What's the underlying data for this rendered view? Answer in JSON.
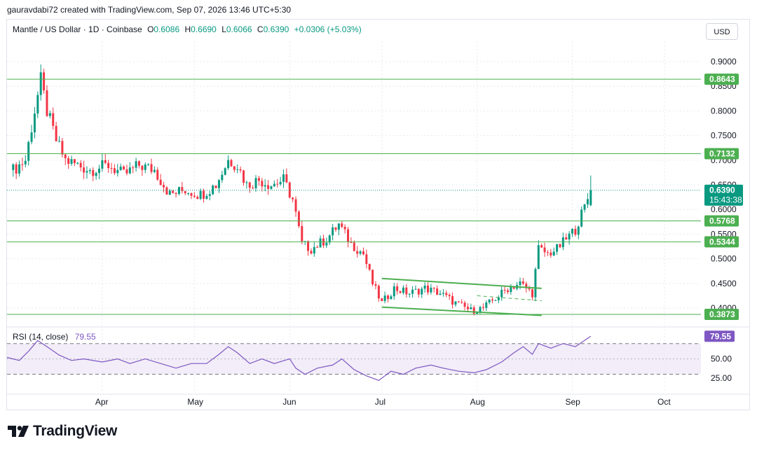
{
  "credit": "gauravdabi72 created with TradingView.com, Sep 07, 2026 13:46 UTC+5:30",
  "legend": {
    "symbol": "Mantle / US Dollar · 1D · Coinbase",
    "o_label": "O",
    "o": "0.6086",
    "h_label": "H",
    "h": "0.6690",
    "l_label": "L",
    "l": "0.6066",
    "c_label": "C",
    "c": "0.6390",
    "change": "+0.0306 (+5.03%)"
  },
  "currency": "USD",
  "logo_text": "TradingView",
  "rsi": {
    "label": "RSI (14, close)",
    "value": "79.55"
  },
  "colors": {
    "up": "#089981",
    "down": "#f23645",
    "level": "#4caf50",
    "rsi": "#7e57c2",
    "rsi_band": "#ede7f6"
  },
  "chart_data": {
    "type": "candlestick",
    "title": "Mantle / US Dollar · 1D · Coinbase",
    "x_ticks": [
      "Apr",
      "May",
      "Jun",
      "Jul",
      "Aug",
      "Sep",
      "Oct"
    ],
    "y_ticks": [
      "0.9000",
      "0.8500",
      "0.8000",
      "0.7500",
      "0.7000",
      "0.6500",
      "0.6000",
      "0.5500",
      "0.5000",
      "0.4500",
      "0.4000"
    ],
    "ylim": [
      0.39,
      0.9
    ],
    "last_price": "0.6390",
    "countdown": "15:43:38",
    "levels": [
      "0.8643",
      "0.7132",
      "0.5768",
      "0.5344",
      "0.3873"
    ],
    "channel": {
      "upper": [
        [
          "2026-07-01",
          0.46
        ],
        [
          "2026-08-22",
          0.44
        ]
      ],
      "lower": [
        [
          "2026-07-01",
          0.402
        ],
        [
          "2026-08-22",
          0.385
        ]
      ],
      "mid": [
        [
          "2026-08-01",
          0.425
        ],
        [
          "2026-08-22",
          0.415
        ]
      ]
    },
    "series_close": [
      [
        "2026-03-03",
        0.68
      ],
      [
        "2026-03-07",
        0.7
      ],
      [
        "2026-03-10",
        0.8
      ],
      [
        "2026-03-12",
        0.862
      ],
      [
        "2026-03-14",
        0.8
      ],
      [
        "2026-03-17",
        0.74
      ],
      [
        "2026-03-20",
        0.7
      ],
      [
        "2026-03-24",
        0.69
      ],
      [
        "2026-03-28",
        0.68
      ],
      [
        "2026-04-03",
        0.69
      ],
      [
        "2026-04-08",
        0.67
      ],
      [
        "2026-04-13",
        0.69
      ],
      [
        "2026-04-18",
        0.68
      ],
      [
        "2026-04-23",
        0.63
      ],
      [
        "2026-04-28",
        0.64
      ],
      [
        "2026-05-03",
        0.63
      ],
      [
        "2026-05-08",
        0.65
      ],
      [
        "2026-05-12",
        0.7
      ],
      [
        "2026-05-15",
        0.69
      ],
      [
        "2026-05-18",
        0.65
      ],
      [
        "2026-05-22",
        0.66
      ],
      [
        "2026-05-26",
        0.65
      ],
      [
        "2026-05-30",
        0.66
      ],
      [
        "2026-06-02",
        0.62
      ],
      [
        "2026-06-05",
        0.53
      ],
      [
        "2026-06-08",
        0.52
      ],
      [
        "2026-06-13",
        0.54
      ],
      [
        "2026-06-17",
        0.57
      ],
      [
        "2026-06-21",
        0.53
      ],
      [
        "2026-06-25",
        0.51
      ],
      [
        "2026-06-28",
        0.45
      ],
      [
        "2026-07-01",
        0.41
      ],
      [
        "2026-07-05",
        0.44
      ],
      [
        "2026-07-10",
        0.43
      ],
      [
        "2026-07-15",
        0.44
      ],
      [
        "2026-07-20",
        0.43
      ],
      [
        "2026-07-25",
        0.41
      ],
      [
        "2026-07-30",
        0.395
      ],
      [
        "2026-08-03",
        0.4
      ],
      [
        "2026-08-07",
        0.42
      ],
      [
        "2026-08-11",
        0.44
      ],
      [
        "2026-08-15",
        0.45
      ],
      [
        "2026-08-19",
        0.43
      ],
      [
        "2026-08-21",
        0.52
      ],
      [
        "2026-08-24",
        0.51
      ],
      [
        "2026-08-27",
        0.52
      ],
      [
        "2026-08-30",
        0.54
      ],
      [
        "2026-09-02",
        0.56
      ],
      [
        "2026-09-05",
        0.605
      ],
      [
        "2026-09-07",
        0.639
      ]
    ],
    "rsi_scale": [
      "50.00",
      "25.00"
    ],
    "rsi_lim": [
      15,
      88
    ],
    "rsi_bands": [
      30,
      70
    ],
    "rsi_series": [
      [
        "2026-03-01",
        52
      ],
      [
        "2026-03-05",
        48
      ],
      [
        "2026-03-08",
        60
      ],
      [
        "2026-03-11",
        74
      ],
      [
        "2026-03-14",
        66
      ],
      [
        "2026-03-18",
        55
      ],
      [
        "2026-03-22",
        48
      ],
      [
        "2026-03-26",
        50
      ],
      [
        "2026-04-01",
        46
      ],
      [
        "2026-04-06",
        50
      ],
      [
        "2026-04-10",
        44
      ],
      [
        "2026-04-15",
        50
      ],
      [
        "2026-04-20",
        44
      ],
      [
        "2026-04-25",
        38
      ],
      [
        "2026-04-30",
        44
      ],
      [
        "2026-05-05",
        44
      ],
      [
        "2026-05-09",
        56
      ],
      [
        "2026-05-12",
        66
      ],
      [
        "2026-05-15",
        58
      ],
      [
        "2026-05-19",
        44
      ],
      [
        "2026-05-23",
        50
      ],
      [
        "2026-05-27",
        44
      ],
      [
        "2026-06-01",
        50
      ],
      [
        "2026-06-03",
        38
      ],
      [
        "2026-06-06",
        30
      ],
      [
        "2026-06-10",
        38
      ],
      [
        "2026-06-15",
        42
      ],
      [
        "2026-06-18",
        50
      ],
      [
        "2026-06-22",
        36
      ],
      [
        "2026-06-26",
        28
      ],
      [
        "2026-06-30",
        22
      ],
      [
        "2026-07-04",
        34
      ],
      [
        "2026-07-08",
        30
      ],
      [
        "2026-07-12",
        38
      ],
      [
        "2026-07-17",
        42
      ],
      [
        "2026-07-21",
        38
      ],
      [
        "2026-07-26",
        34
      ],
      [
        "2026-07-31",
        32
      ],
      [
        "2026-08-04",
        36
      ],
      [
        "2026-08-09",
        46
      ],
      [
        "2026-08-13",
        58
      ],
      [
        "2026-08-16",
        66
      ],
      [
        "2026-08-19",
        56
      ],
      [
        "2026-08-21",
        70
      ],
      [
        "2026-08-25",
        64
      ],
      [
        "2026-08-29",
        70
      ],
      [
        "2026-09-02",
        66
      ],
      [
        "2026-09-05",
        74
      ],
      [
        "2026-09-07",
        79.55
      ]
    ]
  }
}
